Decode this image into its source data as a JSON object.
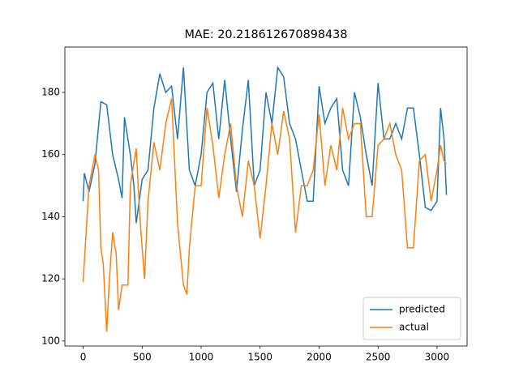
{
  "chart_data": {
    "type": "line",
    "title": "MAE: 20.218612670898438",
    "xlim": [
      -155,
      3255
    ],
    "ylim": [
      98.4,
      194.6
    ],
    "xticks": [
      0,
      500,
      1000,
      1500,
      2000,
      2500,
      3000
    ],
    "yticks": [
      100,
      120,
      140,
      160,
      180
    ],
    "legend": "lower right",
    "grid": false,
    "series": [
      {
        "name": "predicted",
        "color": "#1f77b4",
        "x": [
          0,
          10,
          50,
          100,
          150,
          200,
          250,
          300,
          330,
          350,
          400,
          430,
          450,
          500,
          550,
          600,
          650,
          700,
          750,
          800,
          850,
          900,
          950,
          1000,
          1050,
          1100,
          1150,
          1200,
          1250,
          1300,
          1350,
          1400,
          1450,
          1500,
          1550,
          1600,
          1650,
          1700,
          1750,
          1800,
          1850,
          1900,
          1950,
          2000,
          2050,
          2100,
          2150,
          2200,
          2250,
          2300,
          2350,
          2400,
          2450,
          2500,
          2550,
          2600,
          2650,
          2700,
          2750,
          2800,
          2850,
          2900,
          2950,
          3000,
          3030,
          3060,
          3080
        ],
        "values": [
          145,
          154,
          148,
          157,
          177,
          176,
          160,
          152,
          146,
          172,
          160,
          150,
          138,
          152,
          155,
          175,
          186,
          180,
          182,
          165,
          188,
          155,
          150,
          160,
          180,
          183,
          165,
          184,
          165,
          148,
          168,
          184,
          150,
          155,
          180,
          170,
          188,
          185,
          170,
          165,
          155,
          145,
          145,
          182,
          170,
          175,
          178,
          155,
          150,
          180,
          172,
          160,
          150,
          183,
          165,
          165,
          170,
          165,
          175,
          175,
          160,
          143,
          142,
          145,
          175,
          165,
          147
        ]
      },
      {
        "name": "actual",
        "color": "#ff7f0e",
        "x": [
          0,
          25,
          50,
          100,
          130,
          150,
          170,
          200,
          220,
          250,
          280,
          300,
          330,
          380,
          400,
          450,
          480,
          520,
          550,
          600,
          650,
          700,
          750,
          800,
          850,
          880,
          900,
          950,
          1000,
          1050,
          1100,
          1150,
          1200,
          1250,
          1300,
          1350,
          1400,
          1450,
          1500,
          1550,
          1600,
          1650,
          1700,
          1750,
          1800,
          1850,
          1900,
          1950,
          2000,
          2050,
          2100,
          2150,
          2200,
          2250,
          2300,
          2350,
          2400,
          2450,
          2500,
          2550,
          2600,
          2650,
          2700,
          2750,
          2800,
          2850,
          2900,
          2950,
          3000,
          3030,
          3060,
          3080
        ],
        "values": [
          119,
          135,
          150,
          160,
          155,
          130,
          125,
          103,
          118,
          135,
          128,
          110,
          118,
          118,
          150,
          162,
          140,
          120,
          145,
          164,
          155,
          170,
          178,
          138,
          118,
          115,
          130,
          150,
          150,
          175,
          163,
          146,
          160,
          170,
          150,
          140,
          158,
          150,
          133,
          150,
          170,
          160,
          174,
          165,
          135,
          150,
          150,
          155,
          173,
          150,
          163,
          155,
          175,
          165,
          170,
          170,
          140,
          140,
          163,
          165,
          170,
          160,
          155,
          130,
          130,
          158,
          160,
          145,
          155,
          163,
          158,
          157
        ]
      }
    ]
  }
}
